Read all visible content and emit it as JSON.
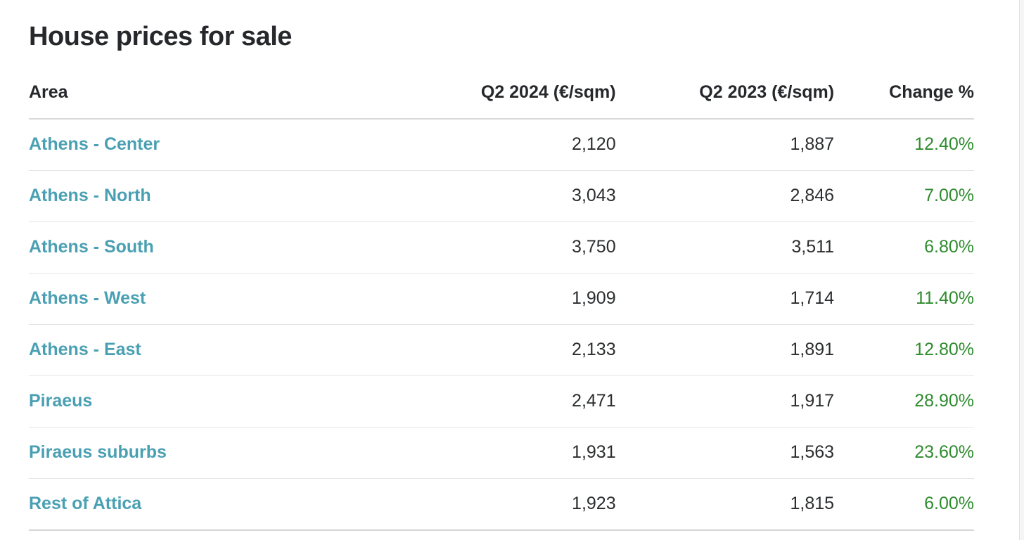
{
  "page": {
    "title": "House prices for sale"
  },
  "table": {
    "columns": [
      "Area",
      "Q2 2024 (€/sqm)",
      "Q2 2023 (€/sqm)",
      "Change %"
    ],
    "rows": [
      {
        "area": "Athens - Center",
        "q2_2024": "2,120",
        "q2_2023": "1,887",
        "change": "12.40%"
      },
      {
        "area": "Athens - North",
        "q2_2024": "3,043",
        "q2_2023": "2,846",
        "change": "7.00%"
      },
      {
        "area": "Athens - South",
        "q2_2024": "3,750",
        "q2_2023": "3,511",
        "change": "6.80%"
      },
      {
        "area": "Athens - West",
        "q2_2024": "1,909",
        "q2_2023": "1,714",
        "change": "11.40%"
      },
      {
        "area": "Athens - East",
        "q2_2024": "2,133",
        "q2_2023": "1,891",
        "change": "12.80%"
      },
      {
        "area": "Piraeus",
        "q2_2024": "2,471",
        "q2_2023": "1,917",
        "change": "28.90%"
      },
      {
        "area": "Piraeus suburbs",
        "q2_2024": "1,931",
        "q2_2023": "1,563",
        "change": "23.60%"
      },
      {
        "area": "Rest of Attica",
        "q2_2024": "1,923",
        "q2_2023": "1,815",
        "change": "6.00%"
      }
    ]
  },
  "colors": {
    "accent_teal": "#4AA0B3",
    "positive_green": "#2F8B2F",
    "text_dark": "#26282B"
  },
  "chart_data": {
    "type": "table",
    "title": "House prices for sale",
    "columns": [
      "Area",
      "Q2 2024 (€/sqm)",
      "Q2 2023 (€/sqm)",
      "Change %"
    ],
    "rows": [
      [
        "Athens - Center",
        2120,
        1887,
        "12.40%"
      ],
      [
        "Athens - North",
        3043,
        2846,
        "7.00%"
      ],
      [
        "Athens - South",
        3750,
        3511,
        "6.80%"
      ],
      [
        "Athens - West",
        1909,
        1714,
        "11.40%"
      ],
      [
        "Athens - East",
        2133,
        1891,
        "12.80%"
      ],
      [
        "Piraeus",
        2471,
        1917,
        "28.90%"
      ],
      [
        "Piraeus suburbs",
        1931,
        1563,
        "23.60%"
      ],
      [
        "Rest of Attica",
        1923,
        1815,
        "6.00%"
      ]
    ]
  }
}
